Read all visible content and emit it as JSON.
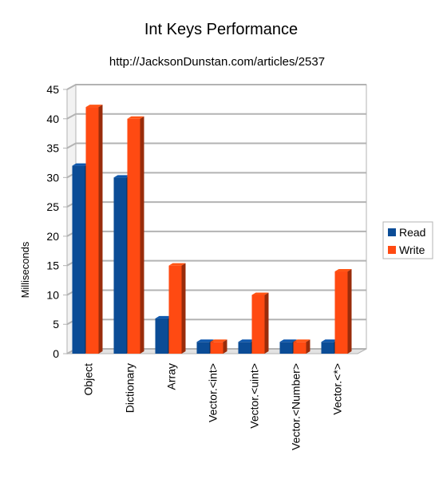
{
  "chart_data": {
    "type": "bar",
    "title": "Int Keys Performance",
    "subtitle": "http://JacksonDunstan.com/articles/2537",
    "xlabel": "",
    "ylabel": "Milliseconds",
    "ylim": [
      0,
      45
    ],
    "yticks": [
      0,
      5,
      10,
      15,
      20,
      25,
      30,
      35,
      40,
      45
    ],
    "grid": true,
    "legend_position": "right",
    "categories": [
      "Object",
      "Dictionary",
      "Array",
      "Vector.<int>",
      "Vector.<uint>",
      "Vector.<Number>",
      "Vector.<*>"
    ],
    "series": [
      {
        "name": "Read",
        "color": "#0b4c96",
        "values": [
          32,
          30,
          6,
          2,
          2,
          2,
          2
        ]
      },
      {
        "name": "Write",
        "color": "#ff4a12",
        "values": [
          42,
          40,
          15,
          2,
          10,
          2,
          14
        ]
      }
    ]
  }
}
